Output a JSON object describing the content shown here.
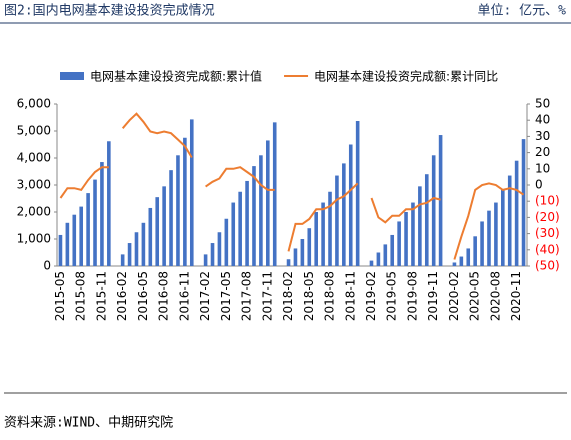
{
  "header": {
    "title": "图2:国内电网基本建设投资完成情况",
    "unit": "单位: 亿元、%"
  },
  "source": "资料来源:WIND、中期研究院",
  "chart_data": {
    "type": "bar_line",
    "categories": [
      "2015-05",
      null,
      null,
      "2015-08",
      null,
      null,
      "2015-11",
      null,
      null,
      "2016-02",
      null,
      null,
      "2016-05",
      null,
      null,
      "2016-08",
      null,
      null,
      "2016-11",
      null,
      null,
      "2017-02",
      null,
      null,
      "2017-05",
      null,
      null,
      "2017-08",
      null,
      null,
      "2017-11",
      null,
      null,
      "2018-02",
      null,
      null,
      "2018-05",
      null,
      null,
      "2018-08",
      null,
      null,
      "2018-11",
      null,
      null,
      "2019-02",
      null,
      null,
      "2019-05",
      null,
      null,
      "2019-08",
      null,
      null,
      "2019-11",
      null,
      null,
      "2020-02",
      null,
      null,
      "2020-05",
      null,
      null,
      "2020-08",
      null,
      null,
      "2020-11",
      null
    ],
    "series": [
      {
        "name": "电网基本建设投资完成额:累计值",
        "color": "#4472c4",
        "type": "bar",
        "values": [
          1150,
          1600,
          1900,
          2200,
          2700,
          3200,
          3850,
          4620,
          null,
          430,
          850,
          1250,
          1600,
          2150,
          2550,
          2950,
          3550,
          4100,
          4750,
          5430,
          null,
          430,
          850,
          1250,
          1750,
          2350,
          2750,
          3150,
          3700,
          4100,
          4650,
          5320,
          null,
          250,
          650,
          1000,
          1400,
          2000,
          2350,
          2750,
          3350,
          3800,
          4500,
          5370,
          null,
          200,
          500,
          800,
          1150,
          1650,
          2000,
          2350,
          2950,
          3400,
          4100,
          4850,
          null,
          130,
          350,
          650,
          1100,
          1650,
          2050,
          2350,
          2850,
          3350,
          3900,
          4700
        ]
      },
      {
        "name": "电网基本建设投资完成额:累计同比",
        "color": "#ed7d31",
        "type": "line",
        "axis": "y2",
        "values": [
          -8,
          -2,
          -2,
          -3,
          3,
          8,
          11,
          11,
          null,
          35,
          40,
          44,
          39,
          33,
          32,
          33,
          32,
          28,
          24,
          17,
          null,
          -1,
          2,
          4,
          10,
          10,
          11,
          8,
          5,
          0,
          -3,
          -3,
          null,
          -41,
          -24,
          -24,
          -21,
          -15,
          -15,
          -13,
          -9,
          -7,
          -3,
          1,
          null,
          -8,
          -20,
          -23,
          -19,
          -19,
          -15,
          -15,
          -12,
          -11,
          -8,
          -9,
          null,
          -46,
          -32,
          -19,
          -3,
          0,
          1,
          0,
          -3,
          -2,
          -3,
          -6
        ]
      }
    ],
    "ylim": [
      0,
      6000
    ],
    "yticks": [
      0,
      {
        "value": 1000,
        "label": "1,000"
      },
      {
        "value": 2000,
        "label": "2,000"
      },
      {
        "value": 3000,
        "label": "3,000"
      },
      {
        "value": 4000,
        "label": "4,000"
      },
      {
        "value": 5000,
        "label": "5,000"
      },
      {
        "value": 6000,
        "label": "6,000"
      }
    ],
    "y2lim": [
      -50,
      50
    ],
    "y2ticks": [
      {
        "value": -50,
        "label": "(50)"
      },
      {
        "value": -40,
        "label": "(40)"
      },
      {
        "value": -30,
        "label": "(30)"
      },
      {
        "value": -20,
        "label": "(20)"
      },
      {
        "value": -10,
        "label": "(10)"
      },
      0,
      10,
      20,
      30,
      40,
      50
    ],
    "negative_tick_color": "#ff0000",
    "legend": "top"
  }
}
